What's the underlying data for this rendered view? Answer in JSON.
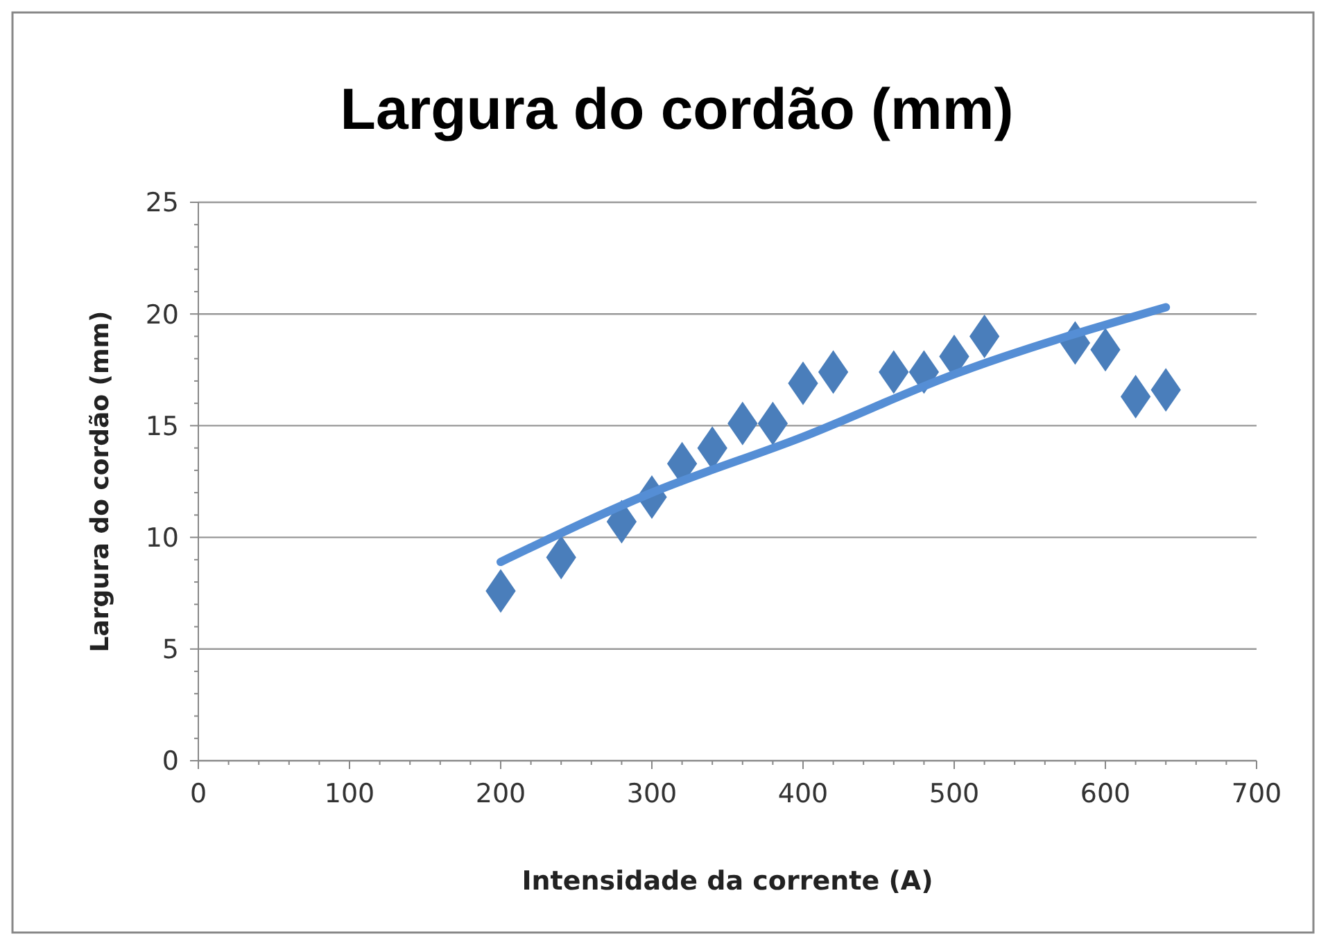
{
  "chart_data": {
    "type": "scatter",
    "title": "Largura do cordão (mm)",
    "xlabel": "Intensidade da corrente (A)",
    "ylabel": "Largura do cordão (mm)",
    "xlim": [
      0,
      700
    ],
    "xticks": [
      0,
      100,
      200,
      300,
      400,
      500,
      600,
      700
    ],
    "ylim": [
      0,
      25
    ],
    "yticks": [
      0,
      5,
      10,
      15,
      20,
      25
    ],
    "grid": "y",
    "series": [
      {
        "marker": "diamond",
        "color": "#4a7ebb",
        "x": [
          200,
          240,
          280,
          300,
          320,
          340,
          360,
          380,
          400,
          420,
          460,
          480,
          500,
          520,
          580,
          600,
          620,
          640
        ],
        "values": [
          7.6,
          9.1,
          10.7,
          11.8,
          13.3,
          14.0,
          15.1,
          15.1,
          16.9,
          17.4,
          17.4,
          17.4,
          18.1,
          19.0,
          18.7,
          18.4,
          16.3,
          16.6
        ]
      },
      {
        "type": "line",
        "color": "#558ed5",
        "x": [
          200,
          300,
          400,
          500,
          640
        ],
        "values": [
          8.9,
          12.0,
          14.5,
          17.3,
          20.3
        ]
      }
    ]
  }
}
